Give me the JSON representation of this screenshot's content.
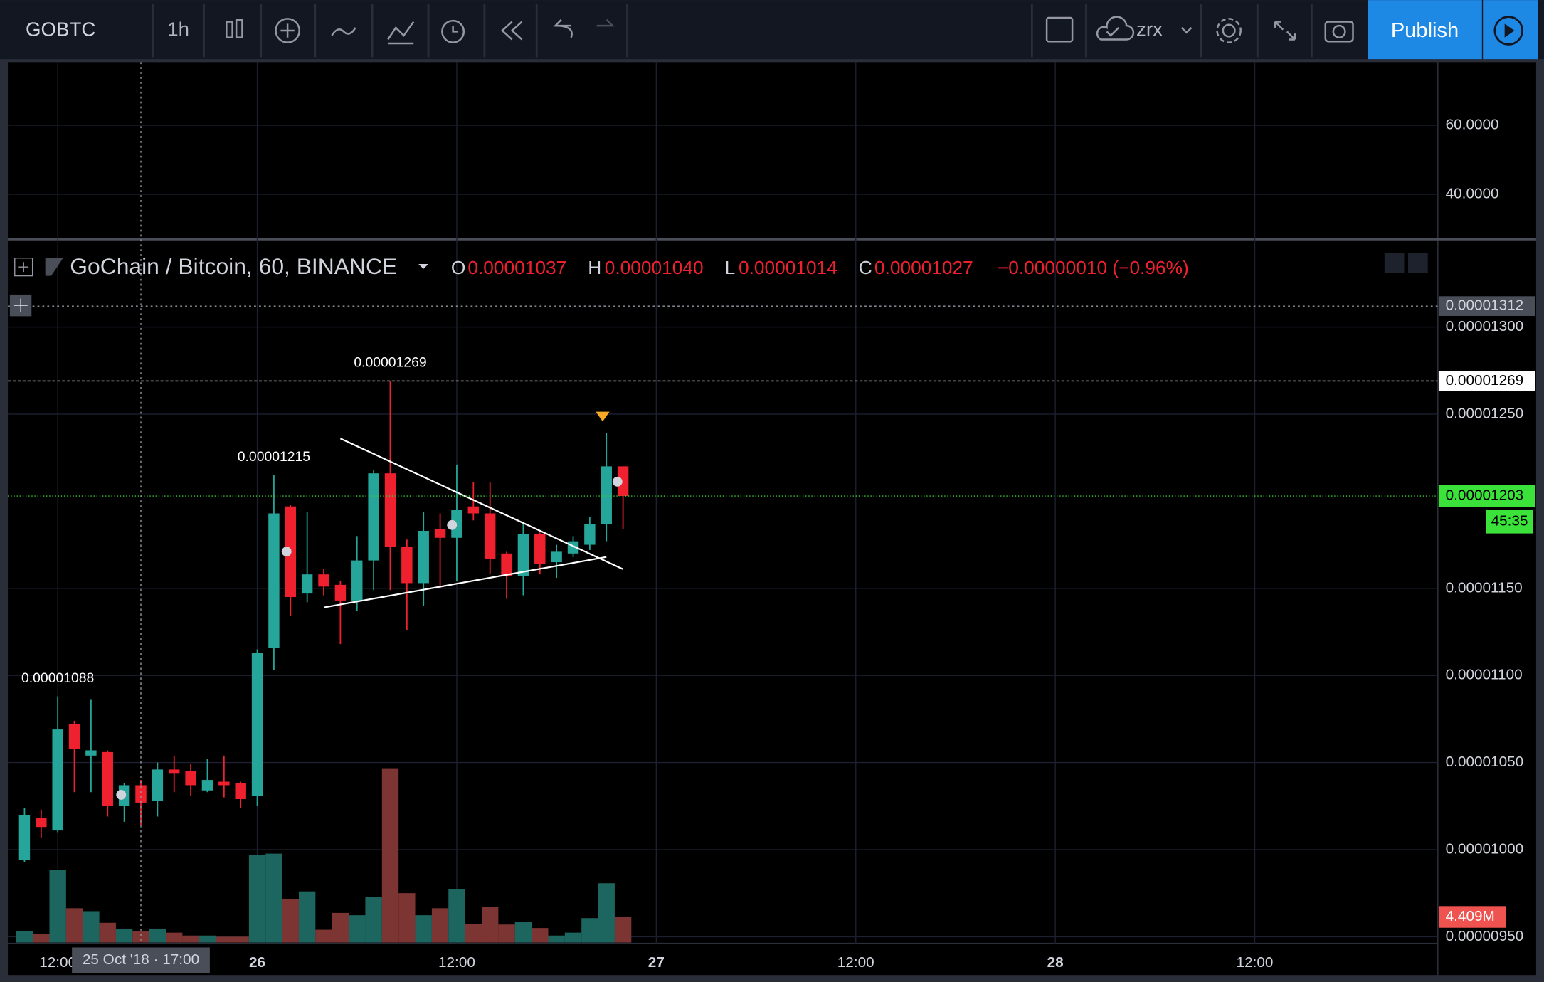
{
  "toolbar": {
    "symbol": "GOBTC",
    "interval": "1h",
    "cloud": "zrx",
    "publish": "Publish"
  },
  "legend": {
    "title": "GoChain / Bitcoin, 60, BINANCE",
    "o": "O",
    "open": "0.00001037",
    "h": "H",
    "high": "0.00001040",
    "l": "L",
    "low": "0.00001014",
    "c": "C",
    "close": "0.00001027",
    "change": "−0.00000010 (−0.96%)"
  },
  "chart_data": [
    {
      "type": "line",
      "series": [],
      "ylim": [
        26.9,
        78.3
      ],
      "yticks": [
        {
          "value": 60,
          "label": "60.0000"
        },
        {
          "value": 40,
          "label": "40.0000"
        }
      ],
      "grid": true
    },
    {
      "type": "candlestick",
      "x": [
        "2018-10-25 10:00",
        "2018-10-25 11:00",
        "2018-10-25 12:00",
        "2018-10-25 13:00",
        "2018-10-25 14:00",
        "2018-10-25 15:00",
        "2018-10-25 16:00",
        "2018-10-25 17:00",
        "2018-10-25 18:00",
        "2018-10-25 19:00",
        "2018-10-25 20:00",
        "2018-10-25 21:00",
        "2018-10-25 22:00",
        "2018-10-25 23:00",
        "2018-10-26 00:00",
        "2018-10-26 01:00",
        "2018-10-26 02:00",
        "2018-10-26 03:00",
        "2018-10-26 04:00",
        "2018-10-26 05:00",
        "2018-10-26 06:00",
        "2018-10-26 07:00",
        "2018-10-26 08:00",
        "2018-10-26 09:00",
        "2018-10-26 10:00",
        "2018-10-26 11:00",
        "2018-10-26 12:00",
        "2018-10-26 13:00",
        "2018-10-26 14:00",
        "2018-10-26 15:00",
        "2018-10-26 16:00",
        "2018-10-26 17:00",
        "2018-10-26 18:00",
        "2018-10-26 19:00",
        "2018-10-26 20:00",
        "2018-10-26 21:00",
        "2018-10-26 22:00"
      ],
      "open": [
        9.94e-06,
        1.018e-05,
        1.011e-05,
        1.072e-05,
        1.054e-05,
        1.056e-05,
        1.025e-05,
        1.037e-05,
        1.028e-05,
        1.046e-05,
        1.045e-05,
        1.034e-05,
        1.039e-05,
        1.038e-05,
        1.031e-05,
        1.116e-05,
        1.197e-05,
        1.147e-05,
        1.158e-05,
        1.152e-05,
        1.143e-05,
        1.166e-05,
        1.216e-05,
        1.174e-05,
        1.153e-05,
        1.184e-05,
        1.179e-05,
        1.197e-05,
        1.193e-05,
        1.17e-05,
        1.157e-05,
        1.181e-05,
        1.165e-05,
        1.17e-05,
        1.175e-05,
        1.187e-05,
        1.22e-05
      ],
      "high": [
        1.024e-05,
        1.023e-05,
        1.088e-05,
        1.074e-05,
        1.086e-05,
        1.057e-05,
        1.038e-05,
        1.04e-05,
        1.05e-05,
        1.054e-05,
        1.049e-05,
        1.052e-05,
        1.054e-05,
        1.039e-05,
        1.115e-05,
        1.215e-05,
        1.198e-05,
        1.194e-05,
        1.161e-05,
        1.154e-05,
        1.18e-05,
        1.218e-05,
        1.269e-05,
        1.178e-05,
        1.194e-05,
        1.193e-05,
        1.221e-05,
        1.211e-05,
        1.211e-05,
        1.171e-05,
        1.188e-05,
        1.182e-05,
        1.175e-05,
        1.18e-05,
        1.191e-05,
        1.239e-05,
        1.22e-05
      ],
      "low": [
        9.93e-06,
        1.007e-05,
        1.01e-05,
        1.033e-05,
        1.033e-05,
        1.019e-05,
        1.016e-05,
        1.014e-05,
        1.019e-05,
        1.033e-05,
        1.031e-05,
        1.033e-05,
        1.03e-05,
        1.024e-05,
        1.025e-05,
        1.103e-05,
        1.134e-05,
        1.142e-05,
        1.146e-05,
        1.118e-05,
        1.137e-05,
        1.149e-05,
        1.149e-05,
        1.126e-05,
        1.14e-05,
        1.15e-05,
        1.154e-05,
        1.189e-05,
        1.158e-05,
        1.144e-05,
        1.146e-05,
        1.158e-05,
        1.156e-05,
        1.168e-05,
        1.172e-05,
        1.177e-05,
        1.184e-05
      ],
      "close": [
        1.02e-05,
        1.013e-05,
        1.069e-05,
        1.058e-05,
        1.057e-05,
        1.025e-05,
        1.037e-05,
        1.027e-05,
        1.046e-05,
        1.044e-05,
        1.037e-05,
        1.04e-05,
        1.037e-05,
        1.029e-05,
        1.113e-05,
        1.193e-05,
        1.145e-05,
        1.158e-05,
        1.151e-05,
        1.143e-05,
        1.166e-05,
        1.216e-05,
        1.174e-05,
        1.153e-05,
        1.183e-05,
        1.179e-05,
        1.195e-05,
        1.193e-05,
        1.167e-05,
        1.157e-05,
        1.181e-05,
        1.164e-05,
        1.171e-05,
        1.177e-05,
        1.187e-05,
        1.22e-05,
        1.203e-05
      ],
      "high_labels": [
        null,
        null,
        "0.00001088",
        null,
        null,
        null,
        null,
        null,
        null,
        null,
        null,
        null,
        null,
        null,
        null,
        "0.00001215",
        null,
        null,
        null,
        null,
        null,
        null,
        "0.00001269",
        null,
        null,
        null,
        null,
        null,
        null,
        null,
        null,
        null,
        null,
        null,
        null,
        null,
        null
      ],
      "volume": [
        2000000,
        1500000,
        12500000,
        5900000,
        5400000,
        3400000,
        2400000,
        1900000,
        2400000,
        1700000,
        1200000,
        1200000,
        1000000,
        1000000,
        15100000,
        15300000,
        7500000,
        8800000,
        2200000,
        5100000,
        4700000,
        7800000,
        30000000,
        8500000,
        4700000,
        5900000,
        9200000,
        3200000,
        6100000,
        3100000,
        3600000,
        2500000,
        1200000,
        1700000,
        4200000,
        10200000,
        4409000
      ],
      "volume_labels": [
        null,
        null,
        null,
        null,
        null,
        null,
        null,
        null,
        null,
        null,
        null,
        null,
        null,
        null,
        null,
        null,
        null,
        null,
        null,
        null,
        null,
        null,
        null,
        null,
        null,
        null,
        null,
        null,
        null,
        null,
        null,
        null,
        null,
        null,
        null,
        null,
        "4.409M"
      ],
      "up_color": "#26a69a",
      "down_color": "#f0212f",
      "volume_up_color": "#1d6660",
      "volume_down_color": "#7c3533",
      "xlim": [
        "2018-10-25 09:00",
        "2018-10-28 23:00"
      ],
      "xticks": [
        {
          "value": "2018-10-25 12:00",
          "label": "12:00"
        },
        {
          "value": "2018-10-26 00:00",
          "label": "26"
        },
        {
          "value": "2018-10-26 12:00",
          "label": "12:00"
        },
        {
          "value": "2018-10-27 00:00",
          "label": "27"
        },
        {
          "value": "2018-10-27 12:00",
          "label": "12:00"
        },
        {
          "value": "2018-10-28 00:00",
          "label": "28"
        },
        {
          "value": "2018-10-28 12:00",
          "label": "12:00"
        }
      ],
      "ylim": [
        9.45e-06,
        1.35e-05
      ],
      "yticks": [
        {
          "value": 1.3e-05,
          "label": "0.00001300"
        },
        {
          "value": 1.25e-05,
          "label": "0.00001250"
        },
        {
          "value": 1.15e-05,
          "label": "0.00001150"
        },
        {
          "value": 1.1e-05,
          "label": "0.00001100"
        },
        {
          "value": 1.05e-05,
          "label": "0.00001050"
        },
        {
          "value": 1e-05,
          "label": "0.00001000"
        },
        {
          "value": 9.5e-06,
          "label": "0.00000950"
        }
      ],
      "grid": true,
      "crosshair": {
        "x": "2018-10-25 17:00",
        "label": "25 Oct '18 · 17:00",
        "price": 1.312e-05
      },
      "countdown": "45:35",
      "trend_lines": [
        {
          "x": [
            "2018-10-26 05:00",
            "2018-10-26 22:00"
          ],
          "y": [
            1.236e-05,
            1.161e-05
          ]
        },
        {
          "x": [
            "2018-10-26 04:00",
            "2018-10-26 21:00"
          ],
          "y": [
            1.139e-05,
            1.168e-05
          ]
        }
      ]
    }
  ]
}
